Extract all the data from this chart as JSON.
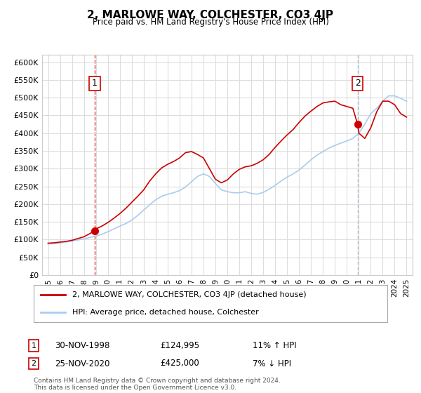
{
  "title": "2, MARLOWE WAY, COLCHESTER, CO3 4JP",
  "subtitle": "Price paid vs. HM Land Registry's House Price Index (HPI)",
  "xlabel": "",
  "ylabel": "",
  "ylim": [
    0,
    620000
  ],
  "xlim": [
    1994.5,
    2025.5
  ],
  "yticks": [
    0,
    50000,
    100000,
    150000,
    200000,
    250000,
    300000,
    350000,
    400000,
    450000,
    500000,
    550000,
    600000
  ],
  "ytick_labels": [
    "£0",
    "£50K",
    "£100K",
    "£150K",
    "£200K",
    "£250K",
    "£300K",
    "£350K",
    "£400K",
    "£450K",
    "£500K",
    "£550K",
    "£600K"
  ],
  "xticks": [
    1995,
    1996,
    1997,
    1998,
    1999,
    2000,
    2001,
    2002,
    2003,
    2004,
    2005,
    2006,
    2007,
    2008,
    2009,
    2010,
    2011,
    2012,
    2013,
    2014,
    2015,
    2016,
    2017,
    2018,
    2019,
    2020,
    2021,
    2022,
    2023,
    2024,
    2025
  ],
  "sale1_x": 1998.9,
  "sale1_y": 124995,
  "sale1_label": "1",
  "sale1_date": "30-NOV-1998",
  "sale1_price": "£124,995",
  "sale1_hpi": "11% ↑ HPI",
  "sale2_x": 2020.9,
  "sale2_y": 425000,
  "sale2_label": "2",
  "sale2_date": "25-NOV-2020",
  "sale2_price": "£425,000",
  "sale2_hpi": "7% ↓ HPI",
  "line1_color": "#cc0000",
  "line2_color": "#aaccee",
  "dot_color": "#cc0000",
  "vline_color": "#dd4444",
  "vline2_color": "#aabbcc",
  "grid_color": "#dddddd",
  "background_color": "#ffffff",
  "legend_line1": "2, MARLOWE WAY, COLCHESTER, CO3 4JP (detached house)",
  "legend_line2": "HPI: Average price, detached house, Colchester",
  "footer": "Contains HM Land Registry data © Crown copyright and database right 2024.\nThis data is licensed under the Open Government Licence v3.0.",
  "hpi_x": [
    1995,
    1995.5,
    1996,
    1996.5,
    1997,
    1997.5,
    1998,
    1998.5,
    1999,
    1999.5,
    2000,
    2000.5,
    2001,
    2001.5,
    2002,
    2002.5,
    2003,
    2003.5,
    2004,
    2004.5,
    2005,
    2005.5,
    2006,
    2006.5,
    2007,
    2007.5,
    2008,
    2008.5,
    2009,
    2009.5,
    2010,
    2010.5,
    2011,
    2011.5,
    2012,
    2012.5,
    2013,
    2013.5,
    2014,
    2014.5,
    2015,
    2015.5,
    2016,
    2016.5,
    2017,
    2017.5,
    2018,
    2018.5,
    2019,
    2019.5,
    2020,
    2020.5,
    2021,
    2021.5,
    2022,
    2022.5,
    2023,
    2023.5,
    2024,
    2024.5,
    2025
  ],
  "hpi_y": [
    88000,
    88500,
    90000,
    93000,
    96000,
    99000,
    102000,
    106000,
    110000,
    115000,
    122000,
    130000,
    138000,
    145000,
    155000,
    168000,
    183000,
    198000,
    212000,
    222000,
    228000,
    232000,
    238000,
    248000,
    263000,
    278000,
    285000,
    278000,
    258000,
    240000,
    235000,
    232000,
    232000,
    235000,
    230000,
    228000,
    233000,
    242000,
    253000,
    265000,
    276000,
    285000,
    296000,
    310000,
    325000,
    338000,
    348000,
    358000,
    365000,
    372000,
    378000,
    385000,
    400000,
    425000,
    455000,
    470000,
    490000,
    505000,
    505000,
    498000,
    490000
  ],
  "price_x": [
    1995,
    1995.5,
    1996,
    1996.5,
    1997,
    1997.5,
    1998,
    1998.5,
    1998.9,
    1999,
    1999.5,
    2000,
    2000.5,
    2001,
    2001.5,
    2002,
    2002.5,
    2003,
    2003.5,
    2004,
    2004.5,
    2005,
    2005.5,
    2006,
    2006.5,
    2007,
    2007.5,
    2008,
    2008.5,
    2009,
    2009.5,
    2010,
    2010.5,
    2011,
    2011.5,
    2012,
    2012.5,
    2013,
    2013.5,
    2014,
    2014.5,
    2015,
    2015.5,
    2016,
    2016.5,
    2017,
    2017.5,
    2018,
    2018.5,
    2019,
    2019.5,
    2020,
    2020.5,
    2020.9,
    2021,
    2021.5,
    2022,
    2022.5,
    2023,
    2023.5,
    2024,
    2024.5,
    2025
  ],
  "price_y": [
    90000,
    91000,
    93000,
    95000,
    98000,
    103000,
    108000,
    117000,
    124995,
    130000,
    138000,
    148000,
    160000,
    173000,
    188000,
    205000,
    222000,
    240000,
    265000,
    285000,
    302000,
    312000,
    320000,
    330000,
    345000,
    348000,
    340000,
    330000,
    300000,
    270000,
    260000,
    268000,
    285000,
    298000,
    305000,
    308000,
    315000,
    325000,
    340000,
    360000,
    378000,
    395000,
    410000,
    430000,
    448000,
    462000,
    475000,
    485000,
    488000,
    490000,
    480000,
    475000,
    470000,
    425000,
    400000,
    385000,
    415000,
    460000,
    490000,
    490000,
    480000,
    455000,
    445000
  ]
}
